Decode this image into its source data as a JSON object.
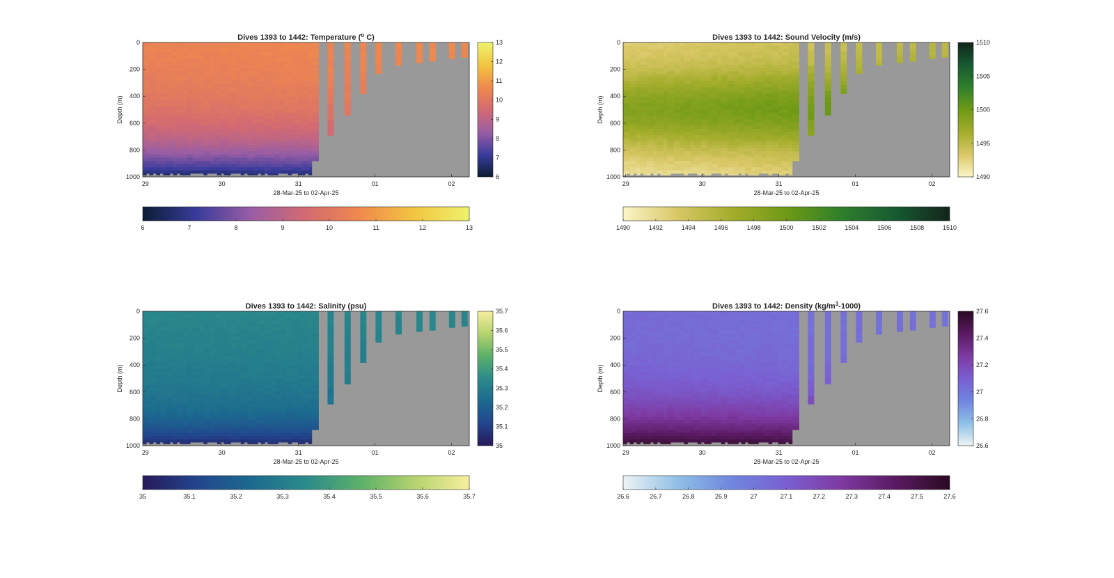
{
  "figure": {
    "xlabel": "28-Mar-25 to 02-Apr-25",
    "ylabel": "Depth (m)",
    "date_ticks": [
      "29",
      "30",
      "31",
      "01",
      "02"
    ],
    "depth_ticks": [
      "0",
      "200",
      "400",
      "600",
      "800",
      "1000"
    ],
    "mask_color": "#999999"
  },
  "chart_data": [
    {
      "type": "heatmap",
      "variable": "temperature",
      "title_main": "Dives 1393 to 1442: Temperature (",
      "title_sup": "o",
      "title_end": " C)",
      "xlabel": "28-Mar-25 to 02-Apr-25",
      "ylabel": "Depth (m)",
      "x_ticks": [
        "29",
        "30",
        "31",
        "01",
        "02"
      ],
      "y_ticks": [
        "0",
        "200",
        "400",
        "600",
        "800",
        "1000"
      ],
      "ylim": [
        0,
        1000
      ],
      "colorbar_range": [
        6,
        13
      ],
      "colorbar_ticks": [
        "6",
        "7",
        "8",
        "9",
        "10",
        "11",
        "12",
        "13"
      ],
      "colormap": [
        "#0b1d34",
        "#3a3c9c",
        "#9a5ea4",
        "#d36a72",
        "#f08a4c",
        "#f2c641",
        "#eef26d"
      ]
    },
    {
      "type": "heatmap",
      "variable": "sound_velocity",
      "title_main": "Dives 1393 to 1442: Sound Velocity (m/s)",
      "title_sup": "",
      "title_end": "",
      "xlabel": "28-Mar-25 to 02-Apr-25",
      "ylabel": "Depth (m)",
      "x_ticks": [
        "29",
        "30",
        "31",
        "01",
        "02"
      ],
      "y_ticks": [
        "0",
        "200",
        "400",
        "600",
        "800",
        "1000"
      ],
      "ylim": [
        0,
        1000
      ],
      "colorbar_range": [
        1490,
        1510
      ],
      "colorbar_ticks_vertical": [
        "1490",
        "1495",
        "1500",
        "1505",
        "1510"
      ],
      "colorbar_ticks": [
        "1490",
        "1492",
        "1494",
        "1496",
        "1498",
        "1500",
        "1502",
        "1504",
        "1506",
        "1508",
        "1510"
      ],
      "colormap": [
        "#fbf5c8",
        "#d9c766",
        "#a4ad2c",
        "#6f9a16",
        "#2f7f2b",
        "#175a32",
        "#12251a"
      ]
    },
    {
      "type": "heatmap",
      "variable": "salinity",
      "title_main": "Dives 1393 to 1442: Salinity (psu)",
      "title_sup": "",
      "title_end": "",
      "xlabel": "28-Mar-25 to 02-Apr-25",
      "ylabel": "Depth (m)",
      "x_ticks": [
        "29",
        "30",
        "31",
        "01",
        "02"
      ],
      "y_ticks": [
        "0",
        "200",
        "400",
        "600",
        "800",
        "1000"
      ],
      "ylim": [
        0,
        1000
      ],
      "colorbar_range": [
        35,
        35.7
      ],
      "colorbar_ticks": [
        "35",
        "35.1",
        "35.2",
        "35.3",
        "35.4",
        "35.5",
        "35.6",
        "35.7"
      ],
      "colormap": [
        "#271a5a",
        "#22458e",
        "#1c6a8f",
        "#2b8b8a",
        "#5cb06a",
        "#b5d36e",
        "#f7ef9e"
      ]
    },
    {
      "type": "heatmap",
      "variable": "density",
      "title_main": "Dives 1393 to 1442: Density (kg/m",
      "title_sup": "3",
      "title_end": "-1000)",
      "xlabel": "28-Mar-25 to 02-Apr-25",
      "ylabel": "Depth (m)",
      "x_ticks": [
        "29",
        "30",
        "31",
        "01",
        "02"
      ],
      "y_ticks": [
        "0",
        "200",
        "400",
        "600",
        "800",
        "1000"
      ],
      "ylim": [
        0,
        1000
      ],
      "colorbar_range": [
        26.6,
        27.6
      ],
      "colorbar_ticks_vertical": [
        "26.6",
        "26.8",
        "27",
        "27.2",
        "27.4",
        "27.6"
      ],
      "colorbar_ticks": [
        "26.6",
        "26.7",
        "26.8",
        "26.9",
        "27",
        "27.1",
        "27.2",
        "27.3",
        "27.4",
        "27.5",
        "27.6"
      ],
      "colormap": [
        "#eef3f4",
        "#8fc0e6",
        "#6f86de",
        "#7a5fd1",
        "#7e3aa2",
        "#5a1a62",
        "#2b0a22"
      ]
    }
  ]
}
